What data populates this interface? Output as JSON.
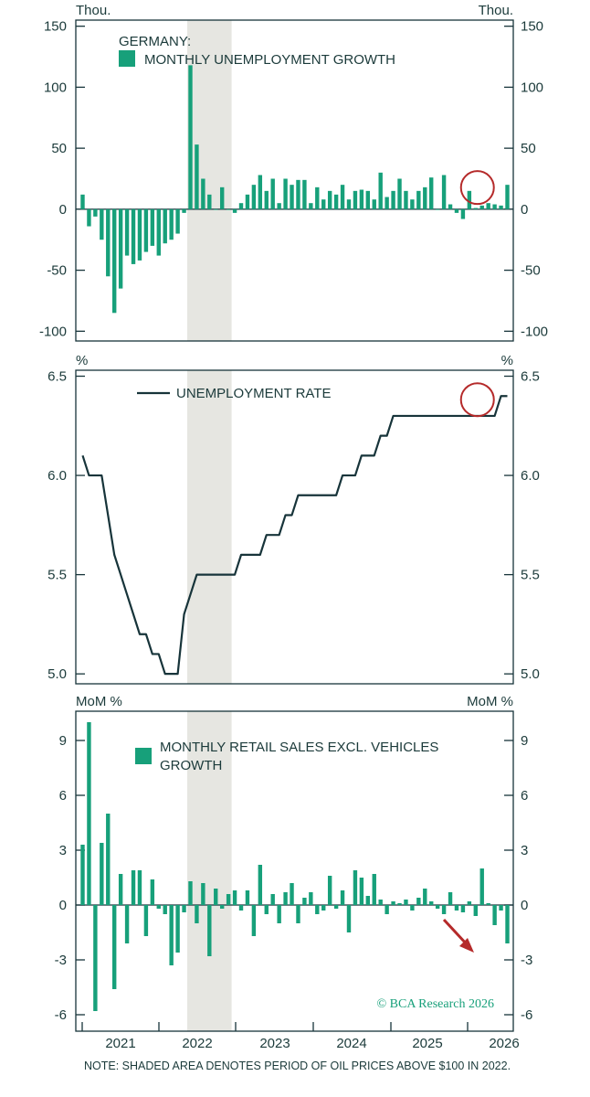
{
  "note": "NOTE: SHADED AREA DENOTES PERIOD OF OIL PRICES ABOVE $100 IN 2022.",
  "source": "© BCA Research 2026",
  "colors": {
    "bar": "#17a07a",
    "line": "#17343a",
    "shade": "#e6e6e1",
    "highlight": "#b52a2a",
    "text": "#1b3a3a",
    "source": "#17a07a"
  },
  "chart_data": [
    {
      "type": "bar",
      "panel": "top",
      "title": "GERMANY:",
      "legend": "MONTHLY UNEMPLOYMENT GROWTH",
      "unit_left": "Thou.",
      "unit_right": "Thou.",
      "ylim": [
        -108,
        155
      ],
      "yticks": [
        150,
        100,
        50,
        0,
        -50,
        -100
      ],
      "ytick_labels": [
        "150",
        "100",
        "50",
        "0",
        "-50",
        "-100"
      ],
      "x_start": "2020-09",
      "shaded_period": [
        "2022-02",
        "2022-08"
      ],
      "highlight": {
        "type": "circle",
        "month": "2025-12",
        "value": 20
      },
      "values": [
        12,
        -14,
        -6,
        -25,
        -55,
        -85,
        -65,
        -38,
        -45,
        -42,
        -35,
        -30,
        -38,
        -28,
        -25,
        -20,
        -3,
        118,
        53,
        25,
        12,
        0,
        18,
        0,
        -3,
        5,
        12,
        20,
        28,
        15,
        25,
        5,
        25,
        20,
        24,
        24,
        5,
        18,
        8,
        15,
        12,
        20,
        8,
        15,
        16,
        15,
        8,
        30,
        10,
        15,
        25,
        15,
        8,
        15,
        18,
        26,
        0,
        28,
        4,
        -3,
        -8,
        15,
        1,
        3,
        5,
        4,
        3,
        20
      ]
    },
    {
      "type": "line",
      "panel": "middle",
      "legend": "UNEMPLOYMENT RATE",
      "unit_left": "%",
      "unit_right": "%",
      "ylim": [
        4.95,
        6.53
      ],
      "yticks": [
        6.5,
        6.0,
        5.5,
        5.0
      ],
      "ytick_labels_left": [
        "6.5",
        "6.0",
        "5.5",
        "5.0"
      ],
      "ytick_labels_right": [
        "6.5",
        "6.0",
        "5.5",
        "5.0"
      ],
      "x_start": "2020-09",
      "shaded_period": [
        "2022-02",
        "2022-08"
      ],
      "highlight": {
        "type": "circle",
        "month": "2025-12",
        "value": 6.4
      },
      "values": [
        6.1,
        6.0,
        6.0,
        6.0,
        5.8,
        5.6,
        5.5,
        5.4,
        5.3,
        5.2,
        5.2,
        5.1,
        5.1,
        5.0,
        5.0,
        5.0,
        5.3,
        5.4,
        5.5,
        5.5,
        5.5,
        5.5,
        5.5,
        5.5,
        5.5,
        5.6,
        5.6,
        5.6,
        5.6,
        5.7,
        5.7,
        5.7,
        5.8,
        5.8,
        5.9,
        5.9,
        5.9,
        5.9,
        5.9,
        5.9,
        5.9,
        6.0,
        6.0,
        6.0,
        6.1,
        6.1,
        6.1,
        6.2,
        6.2,
        6.3,
        6.3,
        6.3,
        6.3,
        6.3,
        6.3,
        6.3,
        6.3,
        6.3,
        6.3,
        6.3,
        6.3,
        6.3,
        6.3,
        6.3,
        6.3,
        6.3,
        6.4,
        6.4
      ]
    },
    {
      "type": "bar",
      "panel": "bottom",
      "legend": "MONTHLY RETAIL SALES EXCL. VEHICLES GROWTH",
      "legend_lines": [
        "MONTHLY RETAIL SALES EXCL. VEHICLES",
        "GROWTH"
      ],
      "unit_left": "MoM %",
      "unit_right": "MoM %",
      "ylim": [
        -6.9,
        10.6
      ],
      "yticks": [
        9,
        6,
        3,
        0,
        -3,
        -6
      ],
      "ytick_labels": [
        "9",
        "6",
        "3",
        "0",
        "-3",
        "-6"
      ],
      "x_start": "2020-09",
      "shaded_period": [
        "2022-02",
        "2022-08"
      ],
      "highlight": {
        "type": "arrow",
        "month": "2025-12",
        "value": -2.1
      },
      "values": [
        3.3,
        10.0,
        -5.8,
        3.4,
        5.0,
        -4.6,
        1.7,
        -2.1,
        1.9,
        1.9,
        -1.7,
        1.4,
        -0.2,
        -0.5,
        -3.3,
        -2.6,
        -0.4,
        1.3,
        -1.0,
        1.2,
        -2.8,
        0.9,
        -0.2,
        0.6,
        0.8,
        -0.3,
        0.8,
        -1.7,
        2.2,
        -0.5,
        0.6,
        -1.0,
        0.7,
        1.2,
        -1.0,
        0.4,
        0.7,
        -0.5,
        -0.3,
        1.6,
        -0.2,
        0.8,
        -1.5,
        1.9,
        1.5,
        0.5,
        1.7,
        0.3,
        -0.5,
        0.2,
        0.1,
        0.3,
        -0.3,
        0.4,
        0.9,
        0.2,
        -0.2,
        -0.5,
        0.7,
        -0.3,
        -0.4,
        0.2,
        -0.6,
        2.0,
        0.1,
        -1.1,
        -0.3,
        -2.1
      ]
    }
  ],
  "x_axis": {
    "labels": [
      "2021",
      "2022",
      "2023",
      "2024",
      "2025",
      "2026"
    ]
  }
}
